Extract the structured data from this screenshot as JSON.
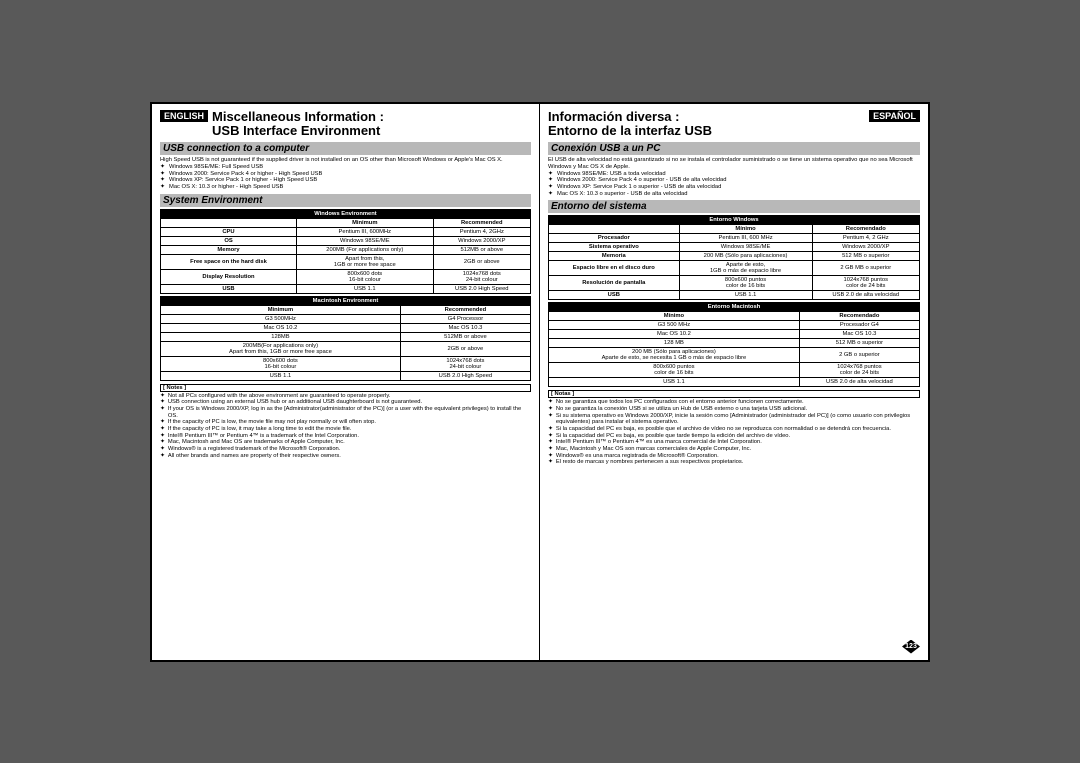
{
  "page_number": "123",
  "left": {
    "lang": "ENGLISH",
    "title": "Miscellaneous Information :\nUSB Interface Environment",
    "sub1": "USB connection to a computer",
    "intro": "High Speed USB is not guaranteed if the supplied driver is not installed on an OS other than Microsoft Windows or Apple's Mac OS X.",
    "intro_items": [
      "Windows 98SE/ME: Full Speed USB",
      "Windows 2000: Service Pack 4 or higher - High Speed USB",
      "Windows XP: Service Pack 1 or higher - High Speed USB",
      "Mac OS X: 10.3 or higher - High Speed USB"
    ],
    "sub2": "System Environment",
    "win_header": "Windows Environment",
    "col_min": "Minimum",
    "col_rec": "Recommended",
    "win_rows": [
      [
        "CPU",
        "Pentium III, 600MHz",
        "Pentium 4, 2GHz"
      ],
      [
        "OS",
        "Windows 98SE/ME",
        "Windows 2000/XP"
      ],
      [
        "Memory",
        "200MB (For applications only)",
        "512MB or above"
      ],
      [
        "Free space on the hard disk",
        "Apart from this,\n1GB or more free space",
        "2GB or above"
      ],
      [
        "Display Resolution",
        "800x600 dots\n16-bit colour",
        "1024x768 dots\n24-bit colour"
      ],
      [
        "USB",
        "USB 1.1",
        "USB 2.0 High Speed"
      ]
    ],
    "mac_header": "Macintosh Environment",
    "mac_rows": [
      [
        "G3 500MHz",
        "G4 Processor"
      ],
      [
        "Mac OS 10.2",
        "Mac OS 10.3"
      ],
      [
        "128MB",
        "512MB or above"
      ],
      [
        "200MB(For applications only)\nApart from this, 1GB or more free space",
        "2GB or above"
      ],
      [
        "800x600 dots\n16-bit colour",
        "1024x768 dots\n24-bit colour"
      ],
      [
        "USB 1.1",
        "USB 2.0 High Speed"
      ]
    ],
    "notes_label": "[ Notes ]",
    "notes": [
      "Not all PCs configured with the above environment are guaranteed to operate properly.",
      "USB connection using an external USB hub or an additional USB daughterboard is not guaranteed.",
      "If your OS is Windows 2000/XP, log in as the [Administrator(administrator of the PC)] (or a user with the equivalent privileges) to install the OS.",
      "If the capacity of PC is low, the movie file may not play normally or will often stop.",
      "If the capacity of PC is low, it may take a long time to edit the movie file.",
      "Intel® Pentium III™ or Pentium 4™ is a trademark of the Intel Corporation.",
      "Mac, Macintosh and Mac OS are trademarks of Apple Computer, Inc.",
      "Windows® is a registered trademark of the Microsoft® Corporation.",
      "All other brands and names are property of their respective owners."
    ]
  },
  "right": {
    "lang": "ESPAÑOL",
    "title": "Información diversa :\nEntorno de la interfaz USB",
    "sub1": "Conexión USB a un PC",
    "intro": "El USB de alta velocidad no está garantizado si no se instala el controlador suministrado o se tiene un sistema operativo que no sea Microsoft Windows y Mac OS X de Apple.",
    "intro_items": [
      "Windows 98SE/ME: USB a toda velocidad",
      "Windows 2000: Service Pack 4 o superior - USB de alta velocidad",
      "Windows XP: Service Pack 1 o superior - USB de alta velocidad",
      "Mac OS X: 10.3 o superior - USB de alta velocidad"
    ],
    "sub2": "Entorno del sistema",
    "win_header": "Entorno Windows",
    "col_min": "Mínimo",
    "col_rec": "Recomendado",
    "win_rows": [
      [
        "Procesador",
        "Pentium III, 600 MHz",
        "Pentium 4, 2 GHz"
      ],
      [
        "Sistema operativo",
        "Windows 98SE/ME",
        "Windows 2000/XP"
      ],
      [
        "Memoria",
        "200 MB (Sólo para aplicaciones)",
        "512 MB o superior"
      ],
      [
        "Espacio libre en el disco duro",
        "Aparte de esto,\n1GB o más de espacio libre",
        "2 GB MB o superior"
      ],
      [
        "Resolución de pantalla",
        "800x600 puntos\ncolor de 16 bits",
        "1024x768 puntos\ncolor de 24 bits"
      ],
      [
        "USB",
        "USB 1.1",
        "USB 2.0 de alta velocidad"
      ]
    ],
    "mac_header": "Entorno Macintosh",
    "mac_rows": [
      [
        "G3 500 MHz",
        "Procesador G4"
      ],
      [
        "Mac OS 10.2",
        "Mac OS 10.3"
      ],
      [
        "128 MB",
        "512 MB o superior"
      ],
      [
        "200 MB (Sólo para aplicaciones)\nAparte de esto, se necesita 1 GB o más de espacio libre",
        "2 GB o superior"
      ],
      [
        "800x600 puntos\ncolor de 16 bits",
        "1024x768 puntos\ncolor de 24 bits"
      ],
      [
        "USB 1.1",
        "USB 2.0 de alta velocidad"
      ]
    ],
    "notes_label": "[ Notas ]",
    "notes": [
      "No se garantiza que todos los PC configurados con el entorno anterior funcionen correctamente.",
      "No se garantiza la conexión USB si se utiliza un Hub de USB externo o una tarjeta USB adicional.",
      "Si su sistema operativo es Windows 2000/XP, inicie la sesión como [Administrador (administrador del PC)] (o como usuario con privilegios equivalentes) para instalar el sistema operativo.",
      "Si la capacidad del PC es baja, es posible que el archivo de vídeo no se reproduzca con normalidad o se detendrá con frecuencia.",
      "Si la capacidad del PC es baja, es posible que tarde tiempo la edición del archivo de vídeo.",
      "Intel® Pentium III™ o Pentium 4™ es una marca comercial de Intel Corporation.",
      "Mac, Macintosh y Mac OS son marcas comerciales de Apple Computer, Inc.",
      "Windows® es una marca registrada de Microsoft® Corporation.",
      "El resto de marcas y nombres pertenecen a sus respectivos propietarios."
    ]
  }
}
